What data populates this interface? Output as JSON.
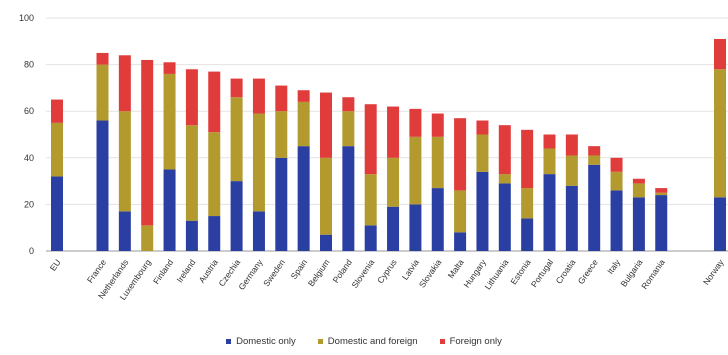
{
  "chart_data": {
    "type": "bar",
    "stacked": true,
    "ylim": [
      0,
      100
    ],
    "yticks": [
      0,
      20,
      40,
      60,
      80,
      100
    ],
    "grid": true,
    "legend_position": "bottom",
    "categories": [
      "EU",
      "France",
      "Netherlands",
      "Luxembourg",
      "Finland",
      "Ireland",
      "Austria",
      "Czechia",
      "Germany",
      "Sweden",
      "Spain",
      "Belgium",
      "Poland",
      "Slovenia",
      "Cyprus",
      "Latvia",
      "Slovakia",
      "Malta",
      "Hungary",
      "Lithuania",
      "Estonia",
      "Portugal",
      "Croatia",
      "Greece",
      "Italy",
      "Bulgaria",
      "Romania",
      "Norway"
    ],
    "series": [
      {
        "name": "Domestic only",
        "color": "#2b3fa3",
        "values": [
          32,
          56,
          17,
          0,
          35,
          13,
          15,
          30,
          17,
          40,
          45,
          7,
          45,
          11,
          19,
          20,
          27,
          8,
          34,
          29,
          14,
          33,
          28,
          37,
          26,
          23,
          24,
          23
        ]
      },
      {
        "name": "Domestic and foreign",
        "color": "#b39a2e",
        "values": [
          23,
          24,
          43,
          11,
          41,
          41,
          36,
          36,
          42,
          20,
          19,
          33,
          15,
          22,
          21,
          29,
          22,
          18,
          16,
          4,
          13,
          11,
          13,
          4,
          8,
          6,
          1,
          55
        ]
      },
      {
        "name": "Foreign only",
        "color": "#e03c3c",
        "values": [
          10,
          5,
          24,
          71,
          5,
          24,
          26,
          8,
          15,
          11,
          5,
          28,
          6,
          30,
          22,
          12,
          10,
          31,
          6,
          21,
          25,
          6,
          9,
          4,
          6,
          2,
          2,
          13
        ]
      }
    ]
  }
}
